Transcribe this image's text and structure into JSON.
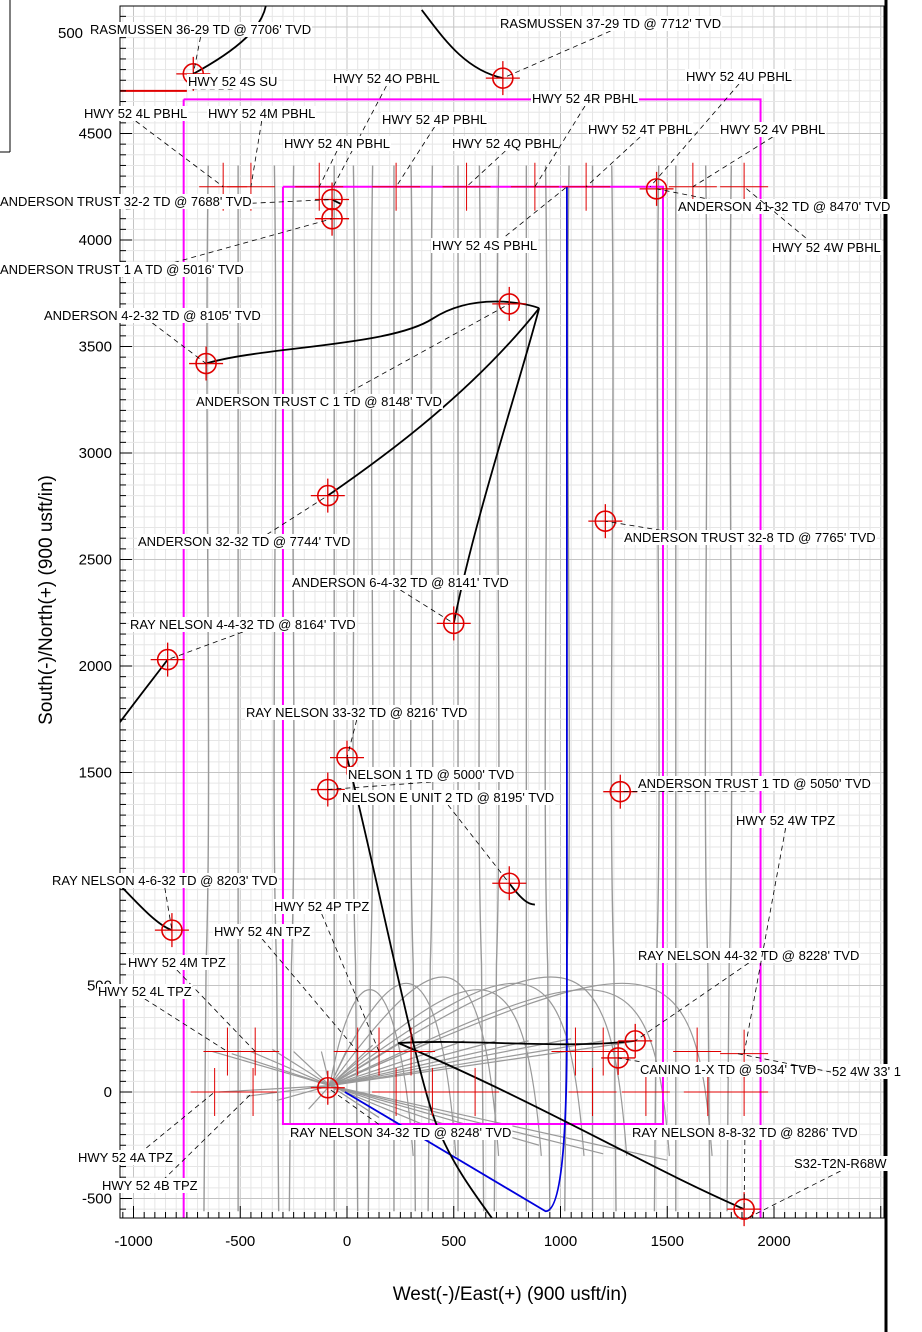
{
  "chart_data": {
    "type": "scatter",
    "xlabel": "West(-)/East(+) (900 usft/in)",
    "ylabel": "South(-)/North(+) (900 usft/in)",
    "xlim": [
      -1090,
      2510
    ],
    "ylim": [
      -720,
      5030
    ],
    "xticks": [
      "-1000",
      "-500",
      "0",
      "500",
      "1000",
      "1500",
      "2000"
    ],
    "yticks": [
      "-500",
      "0",
      "500",
      "1000",
      "1500",
      "2000",
      "2500",
      "3000",
      "3500",
      "4000",
      "4500"
    ],
    "top_tick_partial": "500",
    "grid": true,
    "colors": {
      "well_target": "#e00000",
      "lease_boundary": "#ff00ff",
      "section_line": "#e00000",
      "plan": "#0000dd",
      "offset_wells": "#999999",
      "actual_wells": "#000000"
    },
    "targets": [
      {
        "label": "RASMUSSEN 36-29 TD @ 7706' TVD",
        "x": -720,
        "y": 4780
      },
      {
        "label": "RASMUSSEN 37-29 TD @ 7712' TVD",
        "x": 730,
        "y": 4760
      },
      {
        "label": "ANDERSON TRUST 32-2 TD @ 7688' TVD",
        "x": -70,
        "y": 4190
      },
      {
        "label": "ANDERSON 41-32 TD @ 8470' TVD",
        "x": 1450,
        "y": 4240
      },
      {
        "label": "ANDERSON 4-2-32 TD @ 8105' TVD",
        "x": -660,
        "y": 3420
      },
      {
        "label": "ANDERSON TRUST C 1 TD @ 8148' TVD",
        "x": 760,
        "y": 3700
      },
      {
        "label": "ANDERSON TRUST 1 A TD @ 5016' TVD",
        "x": -70,
        "y": 4100
      },
      {
        "label": "ANDERSON 32-32 TD @ 7744' TVD",
        "x": -90,
        "y": 2800
      },
      {
        "label": "ANDERSON TRUST 32-8 TD @ 7765' TVD",
        "x": 1210,
        "y": 2680
      },
      {
        "label": "ANDERSON 6-4-32 TD @ 8141' TVD",
        "x": 500,
        "y": 2200
      },
      {
        "label": "RAY NELSON 4-4-32 TD @ 8164' TVD",
        "x": -840,
        "y": 2030
      },
      {
        "label": "RAY NELSON 33-32 TD @ 8216' TVD",
        "x": 0,
        "y": 1570
      },
      {
        "label": "NELSON 1 TD @ 5000' TVD",
        "x": -90,
        "y": 1420
      },
      {
        "label": "ANDERSON TRUST 1 TD @ 5050' TVD",
        "x": 1280,
        "y": 1410
      },
      {
        "label": "NELSON E UNIT 2 TD @ 8195' TVD",
        "x": 760,
        "y": 980
      },
      {
        "label": "RAY NELSON 4-6-32 TD @ 8203' TVD",
        "x": -820,
        "y": 760
      },
      {
        "label": "RAY NELSON 44-32 TD @ 8228' TVD",
        "x": 1350,
        "y": 240
      },
      {
        "label": "CANINO 1-X TD @ 5034' TVD",
        "x": 1270,
        "y": 160
      },
      {
        "label": "RAY NELSON 34-32 TD @ 8248' TVD",
        "x": -90,
        "y": 20
      },
      {
        "label": "RAY NELSON 8-8-32 TD @ 8286' TVD",
        "x": 1860,
        "y": -550
      }
    ],
    "annotations": [
      {
        "label": "HWY 52 4S SU",
        "x": -740,
        "y": 4710
      },
      {
        "label": "HWY 52 4O PBHL",
        "x": -70,
        "y": 4240
      },
      {
        "label": "HWY 52 4L PBHL",
        "x": -580,
        "y": 4250
      },
      {
        "label": "HWY 52 4M PBHL",
        "x": -450,
        "y": 4250
      },
      {
        "label": "HWY 52 4N PBHL",
        "x": -130,
        "y": 4250
      },
      {
        "label": "HWY 52 4P PBHL",
        "x": 230,
        "y": 4250
      },
      {
        "label": "HWY 52 4Q PBHL",
        "x": 560,
        "y": 4250
      },
      {
        "label": "HWY 52 4R PBHL",
        "x": 880,
        "y": 4250
      },
      {
        "label": "HWY 52 4T PBHL",
        "x": 1120,
        "y": 4250
      },
      {
        "label": "HWY 52 4U PBHL",
        "x": 1420,
        "y": 4250
      },
      {
        "label": "HWY 52 4V PBHL",
        "x": 1620,
        "y": 4250
      },
      {
        "label": "HWY 52 4S PBHL",
        "x": 1030,
        "y": 4250
      },
      {
        "label": "HWY 52 4W PBHL",
        "x": 1860,
        "y": 4250
      },
      {
        "label": "HWY 52 4P TPZ",
        "x": 150,
        "y": 190
      },
      {
        "label": "HWY 52 4N TPZ",
        "x": 50,
        "y": 190
      },
      {
        "label": "HWY 52 4M TPZ",
        "x": -430,
        "y": 190
      },
      {
        "label": "HWY 52 4L TPZ",
        "x": -560,
        "y": 190
      },
      {
        "label": "HWY 52 4W TPZ",
        "x": 1860,
        "y": 180
      },
      {
        "label": "HWY 52 4A TPZ",
        "x": -620,
        "y": 0
      },
      {
        "label": "HWY 52 4B TPZ",
        "x": -440,
        "y": 0
      },
      {
        "label": "52 4W 33' 1",
        "x": 1830,
        "y": 180
      },
      {
        "label": "S32-T2N-R68W",
        "x": 1860,
        "y": -600
      }
    ]
  }
}
